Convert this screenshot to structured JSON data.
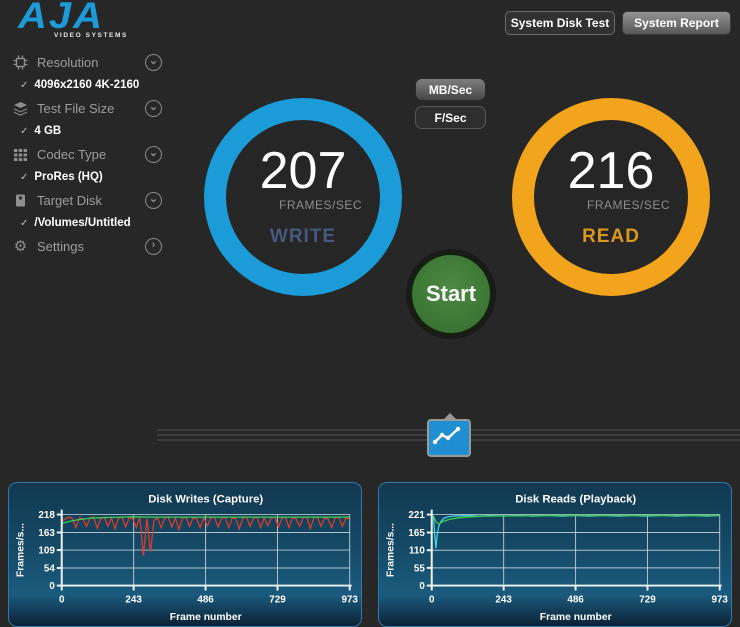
{
  "app": {
    "logo_text": "AJA",
    "logo_subtext": "VIDEO SYSTEMS"
  },
  "icons": {
    "check": "✓",
    "chevron_down": "⌄",
    "chevron_right": "›",
    "gear": "⚙"
  },
  "header": {
    "system_disk_test_label": "System Disk Test",
    "system_report_label": "System Report"
  },
  "sidebar": {
    "items": [
      {
        "label": "Resolution",
        "icon": "chip-icon",
        "chevron": "down",
        "value": "4096x2160 4K-2160"
      },
      {
        "label": "Test File Size",
        "icon": "layers-icon",
        "chevron": "down",
        "value": "4 GB"
      },
      {
        "label": "Codec Type",
        "icon": "grid-icon",
        "chevron": "down",
        "value": "ProRes (HQ)"
      },
      {
        "label": "Target Disk",
        "icon": "drive-icon",
        "chevron": "down",
        "value": "/Volumes/Untitled"
      },
      {
        "label": "Settings",
        "icon": "gear-icon",
        "chevron": "right",
        "value": null
      }
    ]
  },
  "controls": {
    "mbsec_label": "MB/Sec",
    "fsec_label": "F/Sec",
    "start_label": "Start"
  },
  "dials": {
    "write": {
      "value": "207",
      "unit": "FRAMES/SEC",
      "label": "WRITE",
      "ring_color": "#1b9bd7",
      "label_color": "#46597e"
    },
    "read": {
      "value": "216",
      "unit": "FRAMES/SEC",
      "label": "READ",
      "ring_color": "#f2a41c",
      "label_color": "#d9991f"
    }
  },
  "chart_data": [
    {
      "type": "line",
      "title": "Disk Writes (Capture)",
      "xlabel": "Frame number",
      "ylabel": "Frames/s...",
      "xlim": [
        0,
        973
      ],
      "ylim": [
        0,
        218
      ],
      "xticks": [
        0,
        243,
        486,
        729,
        973
      ],
      "yticks": [
        0,
        54,
        109,
        163,
        218
      ],
      "grid": true,
      "legend": "none",
      "series": [
        {
          "name": "write-rate",
          "color": "#e03b28",
          "points": [
            [
              0,
              196
            ],
            [
              12,
              205
            ],
            [
              24,
              210
            ],
            [
              36,
              206
            ],
            [
              48,
              178
            ],
            [
              60,
              208
            ],
            [
              72,
              205
            ],
            [
              84,
              182
            ],
            [
              96,
              208
            ],
            [
              108,
              210
            ],
            [
              120,
              176
            ],
            [
              132,
              206
            ],
            [
              144,
              210
            ],
            [
              156,
              182
            ],
            [
              168,
              208
            ],
            [
              180,
              174
            ],
            [
              192,
              207
            ],
            [
              204,
              210
            ],
            [
              216,
              180
            ],
            [
              228,
              208
            ],
            [
              240,
              205
            ],
            [
              252,
              178
            ],
            [
              264,
              210
            ],
            [
              276,
              92
            ],
            [
              288,
              206
            ],
            [
              300,
              104
            ],
            [
              312,
              200
            ],
            [
              324,
              208
            ],
            [
              336,
              178
            ],
            [
              348,
              207
            ],
            [
              360,
              210
            ],
            [
              372,
              180
            ],
            [
              384,
              208
            ],
            [
              396,
              172
            ],
            [
              408,
              207
            ],
            [
              420,
              210
            ],
            [
              432,
              182
            ],
            [
              444,
              208
            ],
            [
              456,
              205
            ],
            [
              468,
              178
            ],
            [
              480,
              209
            ],
            [
              492,
              183
            ],
            [
              504,
              208
            ],
            [
              516,
              210
            ],
            [
              528,
              180
            ],
            [
              540,
              207
            ],
            [
              552,
              210
            ],
            [
              564,
              178
            ],
            [
              576,
              208
            ],
            [
              588,
              205
            ],
            [
              600,
              174
            ],
            [
              612,
              208
            ],
            [
              624,
              210
            ],
            [
              636,
              182
            ],
            [
              648,
              207
            ],
            [
              660,
              210
            ],
            [
              672,
              178
            ],
            [
              684,
              208
            ],
            [
              696,
              184
            ],
            [
              708,
              208
            ],
            [
              720,
              210
            ],
            [
              732,
              180
            ],
            [
              744,
              207
            ],
            [
              756,
              210
            ],
            [
              768,
              178
            ],
            [
              780,
              208
            ],
            [
              792,
              205
            ],
            [
              804,
              182
            ],
            [
              816,
              209
            ],
            [
              828,
              210
            ],
            [
              840,
              176
            ],
            [
              852,
              208
            ],
            [
              864,
              210
            ],
            [
              876,
              182
            ],
            [
              888,
              207
            ],
            [
              900,
              205
            ],
            [
              912,
              178
            ],
            [
              924,
              208
            ],
            [
              936,
              210
            ],
            [
              948,
              182
            ],
            [
              960,
              207
            ],
            [
              973,
              205
            ]
          ]
        },
        {
          "name": "write-average",
          "color": "#3ecf52",
          "points": [
            [
              0,
              190
            ],
            [
              30,
              198
            ],
            [
              60,
              203
            ],
            [
              100,
              207
            ],
            [
              150,
              209
            ],
            [
              200,
              210
            ],
            [
              243,
              211
            ],
            [
              300,
              210
            ],
            [
              360,
              210
            ],
            [
              420,
              210
            ],
            [
              486,
              210
            ],
            [
              550,
              210
            ],
            [
              620,
              210
            ],
            [
              700,
              210
            ],
            [
              780,
              210
            ],
            [
              860,
              210
            ],
            [
              920,
              210
            ],
            [
              973,
              210
            ]
          ]
        }
      ]
    },
    {
      "type": "line",
      "title": "Disk Reads (Playback)",
      "xlabel": "Frame number",
      "ylabel": "Frames/s...",
      "xlim": [
        0,
        973
      ],
      "ylim": [
        0,
        221
      ],
      "xticks": [
        0,
        243,
        486,
        729,
        973
      ],
      "yticks": [
        0,
        55,
        110,
        165,
        221
      ],
      "grid": true,
      "legend": "none",
      "series": [
        {
          "name": "read-rate",
          "color": "#3fd4e8",
          "points": [
            [
              0,
              221
            ],
            [
              6,
              215
            ],
            [
              10,
              160
            ],
            [
              14,
              116
            ],
            [
              18,
              155
            ],
            [
              24,
              185
            ],
            [
              32,
              200
            ],
            [
              42,
              210
            ],
            [
              55,
              214
            ],
            [
              70,
              216
            ],
            [
              90,
              217
            ],
            [
              120,
              218
            ],
            [
              160,
              216
            ],
            [
              200,
              218
            ],
            [
              243,
              216
            ],
            [
              290,
              218
            ],
            [
              340,
              216
            ],
            [
              390,
              218
            ],
            [
              440,
              216
            ],
            [
              486,
              218
            ],
            [
              530,
              216
            ],
            [
              580,
              218
            ],
            [
              630,
              216
            ],
            [
              680,
              218
            ],
            [
              729,
              216
            ],
            [
              780,
              218
            ],
            [
              830,
              216
            ],
            [
              880,
              218
            ],
            [
              930,
              216
            ],
            [
              973,
              218
            ]
          ]
        },
        {
          "name": "read-average",
          "color": "#3ecf52",
          "points": [
            [
              0,
              221
            ],
            [
              8,
              212
            ],
            [
              16,
              196
            ],
            [
              26,
              192
            ],
            [
              40,
              200
            ],
            [
              60,
              206
            ],
            [
              90,
              211
            ],
            [
              130,
              214
            ],
            [
              180,
              216
            ],
            [
              243,
              217
            ],
            [
              320,
              217
            ],
            [
              400,
              218
            ],
            [
              486,
              218
            ],
            [
              560,
              218
            ],
            [
              640,
              218
            ],
            [
              729,
              218
            ],
            [
              820,
              218
            ],
            [
              900,
              218
            ],
            [
              973,
              218
            ]
          ]
        }
      ]
    }
  ]
}
